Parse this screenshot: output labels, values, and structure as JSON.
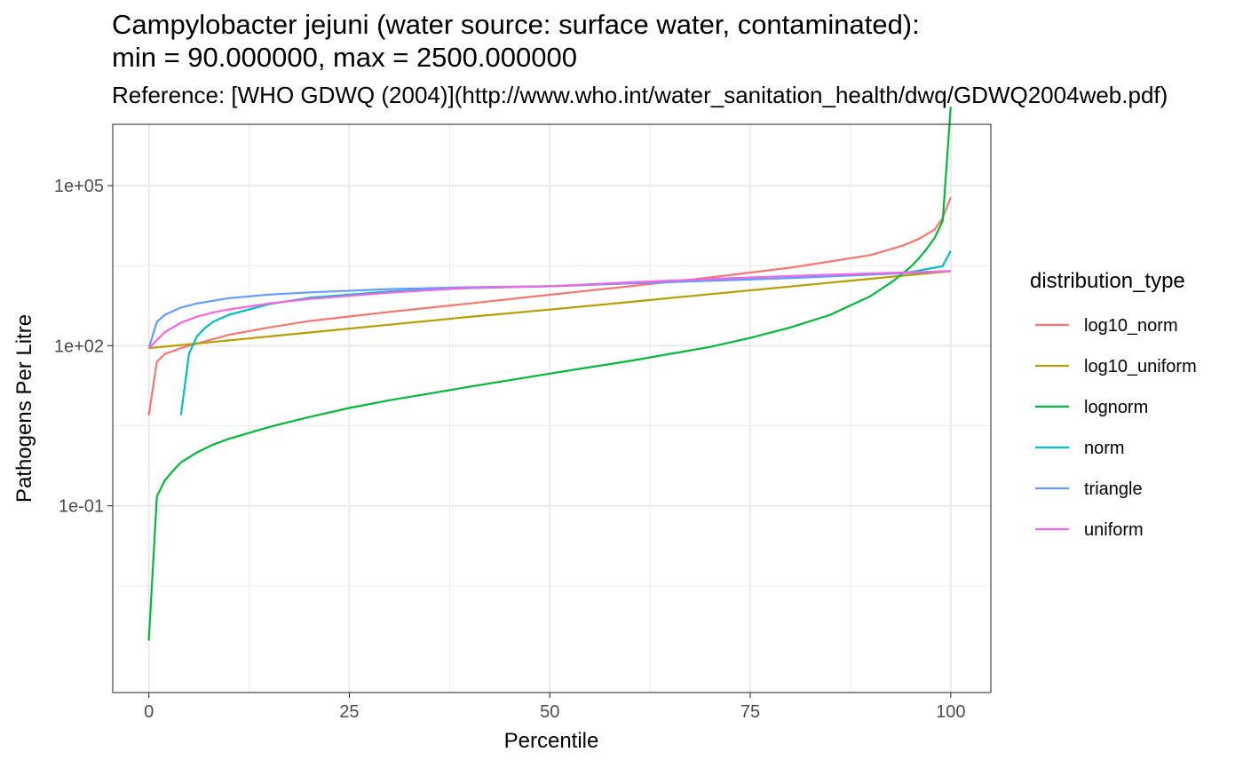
{
  "chart_data": {
    "type": "line",
    "title_line1": "Campylobacter jejuni (water source: surface water, contaminated):",
    "title_line2": "min = 90.000000, max = 2500.000000",
    "subtitle": "Reference: [WHO GDWQ (2004)](http://www.who.int/water_sanitation_health/dwq/GDWQ2004web.pdf)",
    "xlabel": "Percentile",
    "ylabel": "Pathogens Per Litre",
    "x_ticks": [
      0,
      25,
      50,
      75,
      100
    ],
    "x_tick_labels": [
      "0",
      "25",
      "50",
      "75",
      "100"
    ],
    "y_scale": "log10",
    "y_ticks": [
      0.1,
      100,
      100000
    ],
    "y_tick_labels": [
      "1e-01",
      "1e+02",
      "1e+05"
    ],
    "xlim": [
      -4.5,
      105
    ],
    "ylim_log10": [
      -4.5,
      6.15
    ],
    "grid": true,
    "legend_title": "distribution_type",
    "legend_position": "right",
    "series": [
      {
        "name": "log10_norm",
        "color": "#F8766D",
        "x": [
          0,
          1,
          2,
          4,
          6,
          10,
          15,
          20,
          30,
          40,
          50,
          60,
          70,
          80,
          90,
          94,
          96,
          98,
          99,
          100
        ],
        "y": [
          5,
          50,
          70,
          90,
          110,
          160,
          220,
          290,
          430,
          620,
          900,
          1300,
          1900,
          2900,
          5000,
          7500,
          10000,
          15000,
          25000,
          60000
        ]
      },
      {
        "name": "log10_uniform",
        "color": "#B79F00",
        "x": [
          0,
          10,
          20,
          30,
          40,
          50,
          60,
          70,
          80,
          90,
          100
        ],
        "y": [
          90,
          126,
          177,
          248,
          347,
          475,
          660,
          925,
          1290,
          1800,
          2500
        ]
      },
      {
        "name": "lognorm",
        "color": "#00BA38",
        "x": [
          0,
          1,
          2,
          3,
          4,
          6,
          8,
          10,
          15,
          20,
          25,
          30,
          40,
          50,
          60,
          70,
          75,
          80,
          85,
          90,
          93,
          95,
          96,
          97,
          98,
          99,
          100
        ],
        "y": [
          0.0003,
          0.15,
          0.3,
          0.45,
          0.65,
          1.0,
          1.4,
          1.8,
          3.0,
          4.6,
          6.8,
          9.5,
          17,
          30,
          52,
          95,
          140,
          220,
          380,
          850,
          1700,
          3000,
          4300,
          6500,
          10500,
          22000,
          3000000
        ]
      },
      {
        "name": "norm",
        "color": "#00BFC4",
        "x": [
          4,
          5,
          6,
          7,
          8,
          10,
          15,
          20,
          30,
          40,
          50,
          60,
          70,
          80,
          90,
          95,
          99,
          100
        ],
        "y": [
          5,
          70,
          150,
          215,
          280,
          380,
          600,
          790,
          1040,
          1200,
          1300,
          1470,
          1650,
          1850,
          2150,
          2400,
          3100,
          6000
        ]
      },
      {
        "name": "triangle",
        "color": "#619CFF",
        "x": [
          0,
          1,
          2,
          4,
          6,
          10,
          15,
          20,
          30,
          40,
          50,
          60,
          70,
          80,
          90,
          100
        ],
        "y": [
          90,
          280,
          380,
          520,
          620,
          780,
          910,
          1000,
          1150,
          1250,
          1300,
          1470,
          1650,
          1850,
          2150,
          2500
        ]
      },
      {
        "name": "uniform",
        "color": "#F564E3",
        "x": [
          0,
          2,
          4,
          6,
          8,
          10,
          15,
          20,
          30,
          40,
          50,
          60,
          70,
          80,
          90,
          100
        ],
        "y": [
          90,
          180,
          270,
          350,
          420,
          480,
          620,
          750,
          990,
          1220,
          1300,
          1540,
          1780,
          2020,
          2260,
          2500
        ]
      }
    ]
  }
}
